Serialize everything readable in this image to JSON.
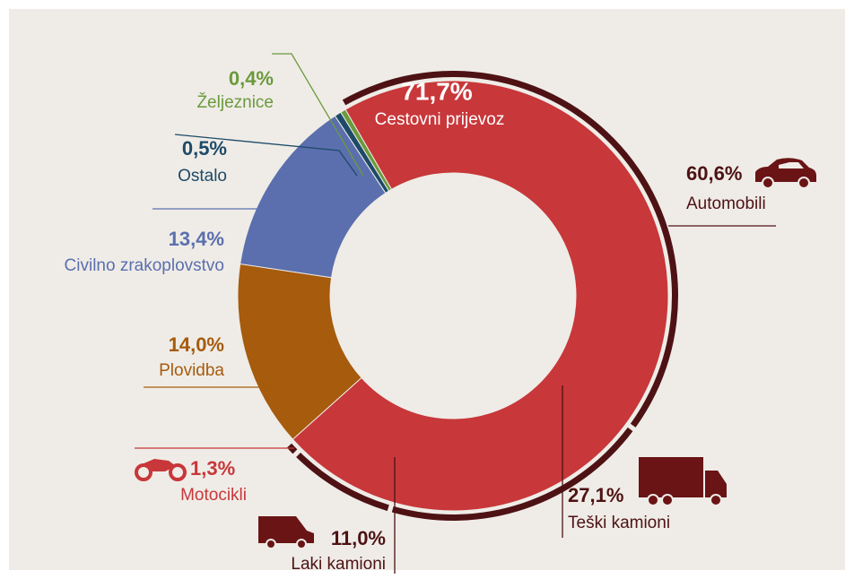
{
  "chart_data": {
    "type": "donut",
    "categories": [
      "Cestovni prijevoz",
      "Plovidba",
      "Civilno zrakoplovstvo",
      "Ostalo",
      "Željeznice"
    ],
    "values": [
      71.7,
      14.0,
      13.4,
      0.5,
      0.4
    ],
    "value_labels": [
      "71,7%",
      "14,0%",
      "13,4%",
      "0,5%",
      "0,4%"
    ],
    "colors": [
      "#c8373a",
      "#a65b0d",
      "#5b6fae",
      "#1d4a68",
      "#6b9a3c"
    ],
    "sub_categories": [
      "Automobili",
      "Teški kamioni",
      "Laki kamioni",
      "Motocikli"
    ],
    "sub_values": [
      60.6,
      27.1,
      11.0,
      1.3
    ],
    "sub_value_labels": [
      "60,6%",
      "27,1%",
      "11,0%",
      "1,3%"
    ],
    "sub_color": "#4e1214"
  }
}
